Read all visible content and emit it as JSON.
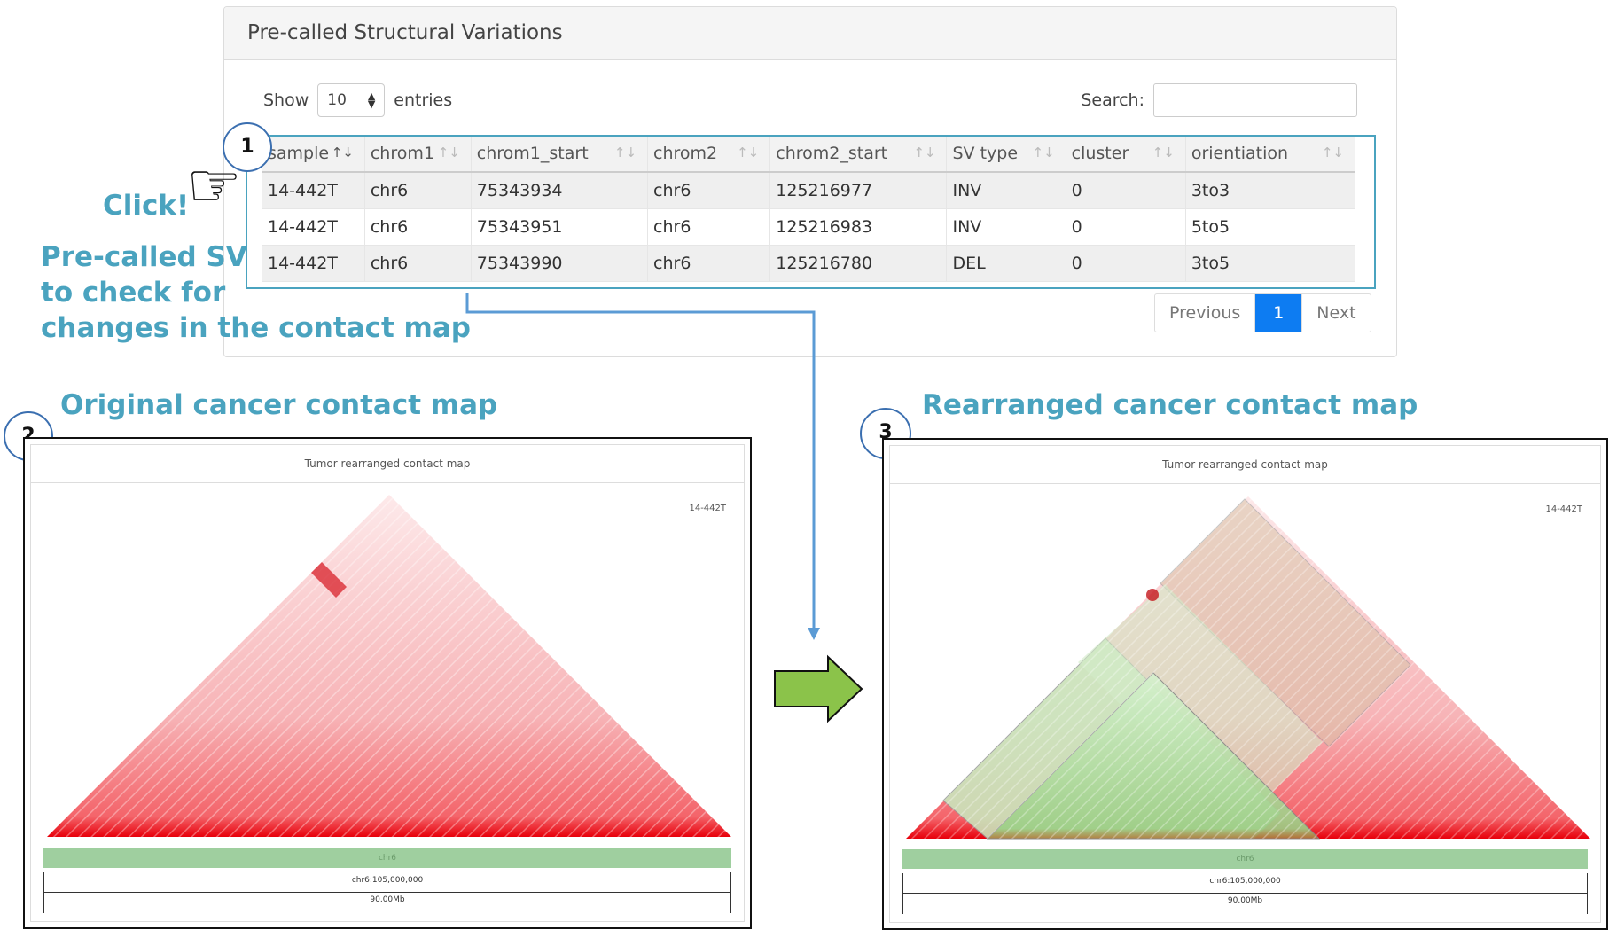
{
  "panel": {
    "title": "Pre-called Structural Variations",
    "show_label": "Show",
    "page_length": "10",
    "entries_label": "entries",
    "search_label": "Search:",
    "search_value": "",
    "columns": [
      "sample",
      "chrom1",
      "chrom1_start",
      "chrom2",
      "chrom2_start",
      "SV type",
      "cluster",
      "orientiation"
    ],
    "rows": [
      [
        "14-442T",
        "chr6",
        "75343934",
        "chr6",
        "125216977",
        "INV",
        "0",
        "3to3"
      ],
      [
        "14-442T",
        "chr6",
        "75343951",
        "chr6",
        "125216983",
        "INV",
        "0",
        "5to5"
      ],
      [
        "14-442T",
        "chr6",
        "75343990",
        "chr6",
        "125216780",
        "DEL",
        "0",
        "3to5"
      ]
    ],
    "pager": {
      "previous": "Previous",
      "current": "1",
      "next": "Next"
    }
  },
  "annotations": {
    "click": "Click!",
    "precalled_line1": "Pre-called SV",
    "precalled_line2": "to check for",
    "precalled_line3": "changes in the contact map",
    "original_title": "Original cancer contact map",
    "rearranged_title": "Rearranged cancer contact map",
    "step1": "1",
    "step2": "2",
    "step3": "3",
    "accent_color": "#4aa3bf"
  },
  "map_original": {
    "title": "Tumor rearranged contact map",
    "sample": "14-442T",
    "chrom": "chr6",
    "position": "chr6:105,000,000",
    "size": "90.00Mb"
  },
  "map_rearranged": {
    "title": "Tumor rearranged contact map",
    "sample": "14-442T",
    "chrom": "chr6",
    "position": "chr6:105,000,000",
    "size": "90.00Mb"
  }
}
